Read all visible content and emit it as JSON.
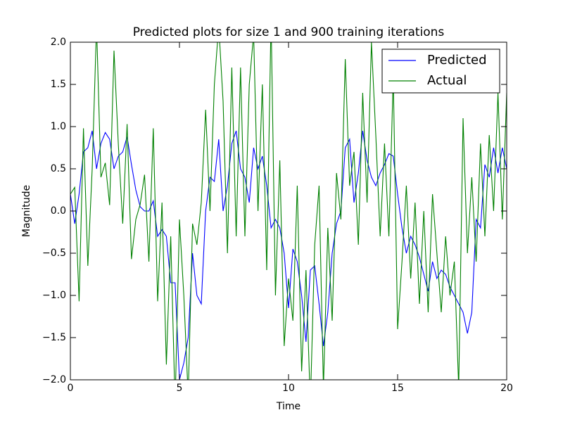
{
  "chart_data": {
    "type": "line",
    "title": "Predicted plots for size 1 and 900 training iterations",
    "x_label": "Time",
    "y_label": "Magnitude",
    "x": [
      0,
      0.2,
      0.4,
      0.6,
      0.8,
      1,
      1.2,
      1.4,
      1.6,
      1.8,
      2,
      2.2,
      2.4,
      2.6,
      2.8,
      3,
      3.2,
      3.4,
      3.6,
      3.8,
      4,
      4.2,
      4.4,
      4.6,
      4.8,
      5,
      5.2,
      5.4,
      5.6,
      5.8,
      6,
      6.2,
      6.4,
      6.6,
      6.8,
      7,
      7.2,
      7.4,
      7.6,
      7.8,
      8,
      8.2,
      8.4,
      8.6,
      8.8,
      9,
      9.2,
      9.4,
      9.6,
      9.8,
      10,
      10.2,
      10.4,
      10.6,
      10.8,
      11,
      11.2,
      11.4,
      11.6,
      11.8,
      12,
      12.2,
      12.4,
      12.6,
      12.8,
      13,
      13.2,
      13.4,
      13.6,
      13.8,
      14,
      14.2,
      14.4,
      14.6,
      14.8,
      15,
      15.2,
      15.4,
      15.6,
      15.8,
      16,
      16.2,
      16.4,
      16.6,
      16.8,
      17,
      17.2,
      17.4,
      17.6,
      17.8,
      18,
      18.2,
      18.4,
      18.6,
      18.8,
      19,
      19.2,
      19.4,
      19.6,
      19.8,
      20
    ],
    "series": [
      {
        "name": "Predicted",
        "color": "#0000ff",
        "values": [
          0.2,
          -0.15,
          0.2,
          0.7,
          0.75,
          0.95,
          0.5,
          0.8,
          0.93,
          0.85,
          0.5,
          0.65,
          0.7,
          0.88,
          0.55,
          0.25,
          0.05,
          0.0,
          0.0,
          0.12,
          -0.3,
          -0.22,
          -0.3,
          -0.85,
          -0.85,
          -2.0,
          -1.8,
          -1.5,
          -0.5,
          -1.0,
          -1.1,
          0.0,
          0.4,
          0.35,
          0.85,
          0.0,
          0.3,
          0.8,
          0.95,
          0.5,
          0.4,
          0.1,
          0.75,
          0.5,
          0.65,
          0.3,
          -0.2,
          -0.1,
          -0.2,
          -0.5,
          -1.15,
          -0.45,
          -0.6,
          -1.0,
          -1.55,
          -0.7,
          -0.65,
          -1.1,
          -1.6,
          -1.2,
          -0.5,
          -0.15,
          0.0,
          0.75,
          0.85,
          0.1,
          0.45,
          0.95,
          0.6,
          0.4,
          0.3,
          0.45,
          0.55,
          0.68,
          0.65,
          0.2,
          -0.2,
          -0.5,
          -0.3,
          -0.4,
          -0.55,
          -0.75,
          -0.95,
          -0.6,
          -0.8,
          -0.7,
          -0.75,
          -0.9,
          -1.0,
          -1.1,
          -1.2,
          -1.45,
          -1.2,
          -0.1,
          -0.2,
          0.55,
          0.4,
          0.75,
          0.45,
          0.75,
          0.5
        ]
      },
      {
        "name": "Actual",
        "color": "#008000",
        "values": [
          0.2,
          0.28,
          -1.07,
          0.98,
          -0.65,
          0.5,
          2.2,
          0.4,
          0.57,
          0.07,
          1.9,
          0.78,
          -0.15,
          1.03,
          -0.57,
          -0.1,
          0.08,
          0.43,
          -0.6,
          0.98,
          -1.07,
          0.1,
          -1.82,
          -0.3,
          -2.3,
          -0.1,
          -1.0,
          -2.2,
          -0.15,
          -0.4,
          0.1,
          1.2,
          0.0,
          1.5,
          2.2,
          1.3,
          -0.5,
          1.7,
          -0.3,
          1.7,
          -0.3,
          1.5,
          2.1,
          0.0,
          1.5,
          -0.7,
          2.3,
          -1.0,
          0.6,
          -1.6,
          -0.8,
          -1.3,
          0.3,
          -1.9,
          -0.7,
          -2.3,
          -0.4,
          0.3,
          -2.1,
          -0.2,
          -1.3,
          0.45,
          -0.1,
          1.8,
          0.3,
          0.7,
          -0.4,
          1.4,
          0.1,
          2.0,
          0.9,
          -0.3,
          0.8,
          -0.3,
          1.6,
          -1.4,
          -0.6,
          0.3,
          -0.8,
          0.1,
          -1.1,
          0.0,
          -1.2,
          0.2,
          -0.5,
          -1.2,
          -0.3,
          -1.0,
          -0.6,
          -2.1,
          1.1,
          -0.5,
          0.4,
          -0.6,
          0.8,
          -0.3,
          0.9,
          0.0,
          1.4,
          -0.1,
          1.4
        ]
      }
    ],
    "xlim": [
      0,
      20
    ],
    "ylim": [
      -2,
      2
    ],
    "xticks": [
      0,
      5,
      10,
      15,
      20
    ],
    "yticks": [
      {
        "value": -2,
        "label": "−2.0"
      },
      {
        "value": -1.5,
        "label": "−1.5"
      },
      {
        "value": -1,
        "label": "−1.0"
      },
      {
        "value": -0.5,
        "label": "−0.5"
      },
      {
        "value": 0,
        "label": "0.0"
      },
      {
        "value": 0.5,
        "label": "0.5"
      },
      {
        "value": 1,
        "label": "1.0"
      },
      {
        "value": 1.5,
        "label": "1.5"
      },
      {
        "value": 2,
        "label": "2.0"
      }
    ],
    "legend": "upper right",
    "grid": false
  }
}
